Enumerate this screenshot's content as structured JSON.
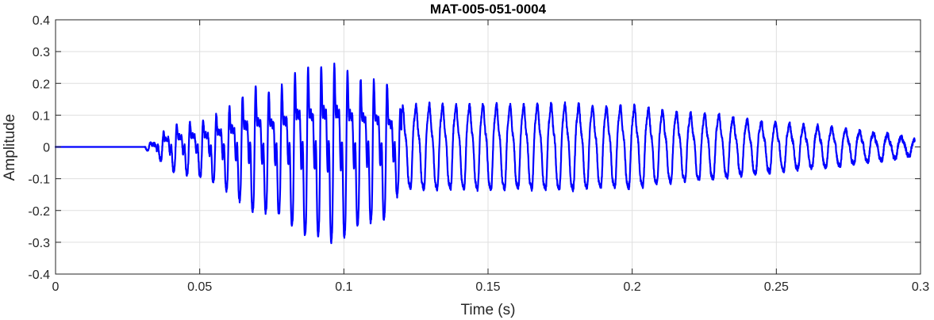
{
  "chart_data": {
    "type": "line",
    "title": "MAT-005-051-0004",
    "xlabel": "Time (s)",
    "ylabel": "Amplitude",
    "xlim": [
      0,
      0.3
    ],
    "ylim": [
      -0.4,
      0.4
    ],
    "grid": true,
    "legend": "none",
    "x_ticks": [
      0,
      0.05,
      0.1,
      0.15,
      0.2,
      0.25,
      0.3
    ],
    "x_tick_labels": [
      "0",
      "0.05",
      "0.1",
      "0.15",
      "0.2",
      "0.25",
      "0.3"
    ],
    "y_ticks": [
      -0.4,
      -0.3,
      -0.2,
      -0.1,
      0,
      0.1,
      0.2,
      0.3,
      0.4
    ],
    "y_tick_labels": [
      "-0.4",
      "-0.3",
      "-0.2",
      "-0.1",
      "0",
      "0.1",
      "0.2",
      "0.3",
      "0.4"
    ],
    "line_color": "#0000ff",
    "signal_start_time": 0.031,
    "signal_end_time": 0.298,
    "signal_envelope": [
      [
        0.0,
        0.0
      ],
      [
        0.03,
        0.001
      ],
      [
        0.035,
        0.03
      ],
      [
        0.04,
        0.08
      ],
      [
        0.045,
        0.09
      ],
      [
        0.05,
        0.1
      ],
      [
        0.055,
        0.12
      ],
      [
        0.06,
        0.15
      ],
      [
        0.065,
        0.19
      ],
      [
        0.07,
        0.23
      ],
      [
        0.075,
        0.21
      ],
      [
        0.08,
        0.24
      ],
      [
        0.085,
        0.3
      ],
      [
        0.09,
        0.29
      ],
      [
        0.095,
        0.32
      ],
      [
        0.1,
        0.3
      ],
      [
        0.105,
        0.26
      ],
      [
        0.11,
        0.25
      ],
      [
        0.115,
        0.24
      ],
      [
        0.12,
        0.13
      ],
      [
        0.13,
        0.14
      ],
      [
        0.14,
        0.135
      ],
      [
        0.15,
        0.14
      ],
      [
        0.16,
        0.135
      ],
      [
        0.17,
        0.14
      ],
      [
        0.18,
        0.14
      ],
      [
        0.19,
        0.13
      ],
      [
        0.2,
        0.135
      ],
      [
        0.21,
        0.12
      ],
      [
        0.22,
        0.11
      ],
      [
        0.23,
        0.105
      ],
      [
        0.24,
        0.09
      ],
      [
        0.25,
        0.08
      ],
      [
        0.26,
        0.07
      ],
      [
        0.27,
        0.065
      ],
      [
        0.28,
        0.05
      ],
      [
        0.29,
        0.04
      ],
      [
        0.298,
        0.025
      ]
    ]
  }
}
